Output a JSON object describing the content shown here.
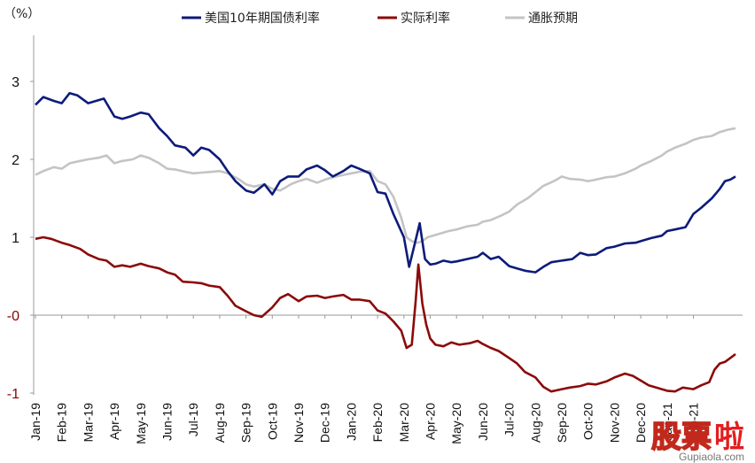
{
  "chart_data": {
    "type": "line",
    "unit_label": "（%）",
    "ylim": [
      -1,
      3.5
    ],
    "y_ticks": [
      {
        "value": 3,
        "label": "3"
      },
      {
        "value": 2,
        "label": "2"
      },
      {
        "value": 1,
        "label": "1"
      },
      {
        "value": 0,
        "label": "-0"
      },
      {
        "value": -1,
        "label": "-1"
      }
    ],
    "grid": false,
    "legend_position": "top",
    "categories": [
      "Jan-19",
      "Feb-19",
      "Mar-19",
      "Apr-19",
      "May-19",
      "Jun-19",
      "Jul-19",
      "Aug-19",
      "Sep-19",
      "Oct-19",
      "Nov-19",
      "Dec-19",
      "Jan-20",
      "Feb-20",
      "Mar-20",
      "Apr-20",
      "May-20",
      "Jun-20",
      "Jul-20",
      "Aug-20",
      "Sep-20",
      "Oct-20",
      "Nov-20",
      "Dec-20",
      "Jan-21",
      "Feb-21"
    ],
    "series": [
      {
        "name": "美国10年期国债利率",
        "color": "#0d1b7a",
        "points": [
          [
            0,
            2.7
          ],
          [
            0.3,
            2.8
          ],
          [
            0.7,
            2.75
          ],
          [
            1.0,
            2.72
          ],
          [
            1.3,
            2.85
          ],
          [
            1.6,
            2.82
          ],
          [
            2.0,
            2.72
          ],
          [
            2.3,
            2.75
          ],
          [
            2.6,
            2.78
          ],
          [
            3.0,
            2.55
          ],
          [
            3.3,
            2.52
          ],
          [
            3.6,
            2.55
          ],
          [
            4.0,
            2.6
          ],
          [
            4.3,
            2.58
          ],
          [
            4.7,
            2.4
          ],
          [
            5.0,
            2.3
          ],
          [
            5.3,
            2.18
          ],
          [
            5.7,
            2.15
          ],
          [
            6.0,
            2.05
          ],
          [
            6.3,
            2.15
          ],
          [
            6.6,
            2.12
          ],
          [
            7.0,
            2.0
          ],
          [
            7.3,
            1.85
          ],
          [
            7.6,
            1.72
          ],
          [
            8.0,
            1.6
          ],
          [
            8.3,
            1.57
          ],
          [
            8.7,
            1.68
          ],
          [
            9.0,
            1.55
          ],
          [
            9.3,
            1.72
          ],
          [
            9.6,
            1.78
          ],
          [
            10.0,
            1.78
          ],
          [
            10.3,
            1.87
          ],
          [
            10.7,
            1.92
          ],
          [
            11.0,
            1.86
          ],
          [
            11.3,
            1.78
          ],
          [
            11.7,
            1.85
          ],
          [
            12.0,
            1.92
          ],
          [
            12.3,
            1.88
          ],
          [
            12.7,
            1.82
          ],
          [
            13.0,
            1.58
          ],
          [
            13.3,
            1.56
          ],
          [
            13.6,
            1.3
          ],
          [
            14.0,
            1.0
          ],
          [
            14.2,
            0.62
          ],
          [
            14.4,
            0.9
          ],
          [
            14.6,
            1.18
          ],
          [
            14.8,
            0.72
          ],
          [
            15.0,
            0.65
          ],
          [
            15.2,
            0.66
          ],
          [
            15.5,
            0.7
          ],
          [
            15.8,
            0.68
          ],
          [
            16.0,
            0.69
          ],
          [
            16.4,
            0.72
          ],
          [
            16.8,
            0.75
          ],
          [
            17.0,
            0.8
          ],
          [
            17.3,
            0.72
          ],
          [
            17.6,
            0.75
          ],
          [
            18.0,
            0.63
          ],
          [
            18.3,
            0.6
          ],
          [
            18.6,
            0.57
          ],
          [
            19.0,
            0.55
          ],
          [
            19.3,
            0.62
          ],
          [
            19.6,
            0.68
          ],
          [
            20.0,
            0.7
          ],
          [
            20.4,
            0.72
          ],
          [
            20.7,
            0.8
          ],
          [
            21.0,
            0.77
          ],
          [
            21.3,
            0.78
          ],
          [
            21.7,
            0.86
          ],
          [
            22.0,
            0.88
          ],
          [
            22.4,
            0.92
          ],
          [
            22.8,
            0.93
          ],
          [
            23.0,
            0.95
          ],
          [
            23.4,
            0.99
          ],
          [
            23.8,
            1.02
          ],
          [
            24.0,
            1.08
          ],
          [
            24.3,
            1.1
          ],
          [
            24.7,
            1.13
          ],
          [
            25.0,
            1.3
          ],
          [
            25.3,
            1.38
          ],
          [
            25.7,
            1.5
          ],
          [
            26.0,
            1.62
          ],
          [
            26.2,
            1.72
          ],
          [
            26.4,
            1.74
          ],
          [
            26.6,
            1.78
          ]
        ]
      },
      {
        "name": "实际利率",
        "color": "#8b0a0a",
        "points": [
          [
            0,
            0.98
          ],
          [
            0.3,
            1.0
          ],
          [
            0.6,
            0.98
          ],
          [
            1.0,
            0.93
          ],
          [
            1.3,
            0.9
          ],
          [
            1.7,
            0.85
          ],
          [
            2.0,
            0.78
          ],
          [
            2.4,
            0.72
          ],
          [
            2.7,
            0.7
          ],
          [
            3.0,
            0.62
          ],
          [
            3.3,
            0.64
          ],
          [
            3.6,
            0.62
          ],
          [
            4.0,
            0.66
          ],
          [
            4.3,
            0.63
          ],
          [
            4.7,
            0.6
          ],
          [
            5.0,
            0.55
          ],
          [
            5.3,
            0.52
          ],
          [
            5.6,
            0.43
          ],
          [
            6.0,
            0.42
          ],
          [
            6.3,
            0.41
          ],
          [
            6.6,
            0.38
          ],
          [
            7.0,
            0.36
          ],
          [
            7.3,
            0.25
          ],
          [
            7.6,
            0.12
          ],
          [
            8.0,
            0.05
          ],
          [
            8.3,
            0.0
          ],
          [
            8.6,
            -0.02
          ],
          [
            9.0,
            0.1
          ],
          [
            9.3,
            0.22
          ],
          [
            9.6,
            0.27
          ],
          [
            10.0,
            0.18
          ],
          [
            10.3,
            0.24
          ],
          [
            10.7,
            0.25
          ],
          [
            11.0,
            0.22
          ],
          [
            11.3,
            0.24
          ],
          [
            11.7,
            0.26
          ],
          [
            12.0,
            0.2
          ],
          [
            12.3,
            0.2
          ],
          [
            12.7,
            0.18
          ],
          [
            13.0,
            0.06
          ],
          [
            13.3,
            0.02
          ],
          [
            13.6,
            -0.08
          ],
          [
            13.9,
            -0.2
          ],
          [
            14.1,
            -0.42
          ],
          [
            14.3,
            -0.38
          ],
          [
            14.45,
            0.2
          ],
          [
            14.55,
            0.65
          ],
          [
            14.7,
            0.15
          ],
          [
            14.85,
            -0.12
          ],
          [
            15.0,
            -0.3
          ],
          [
            15.2,
            -0.38
          ],
          [
            15.5,
            -0.4
          ],
          [
            15.8,
            -0.35
          ],
          [
            16.1,
            -0.38
          ],
          [
            16.5,
            -0.36
          ],
          [
            16.8,
            -0.33
          ],
          [
            17.0,
            -0.37
          ],
          [
            17.3,
            -0.42
          ],
          [
            17.6,
            -0.46
          ],
          [
            18.0,
            -0.55
          ],
          [
            18.3,
            -0.62
          ],
          [
            18.6,
            -0.73
          ],
          [
            19.0,
            -0.8
          ],
          [
            19.3,
            -0.92
          ],
          [
            19.6,
            -0.98
          ],
          [
            20.0,
            -0.95
          ],
          [
            20.3,
            -0.93
          ],
          [
            20.7,
            -0.91
          ],
          [
            21.0,
            -0.88
          ],
          [
            21.3,
            -0.89
          ],
          [
            21.7,
            -0.85
          ],
          [
            22.0,
            -0.8
          ],
          [
            22.4,
            -0.75
          ],
          [
            22.7,
            -0.78
          ],
          [
            23.0,
            -0.84
          ],
          [
            23.3,
            -0.9
          ],
          [
            23.7,
            -0.94
          ],
          [
            24.0,
            -0.97
          ],
          [
            24.3,
            -0.98
          ],
          [
            24.6,
            -0.93
          ],
          [
            25.0,
            -0.95
          ],
          [
            25.3,
            -0.9
          ],
          [
            25.6,
            -0.86
          ],
          [
            25.8,
            -0.7
          ],
          [
            26.0,
            -0.62
          ],
          [
            26.2,
            -0.6
          ],
          [
            26.4,
            -0.55
          ],
          [
            26.6,
            -0.5
          ]
        ]
      },
      {
        "name": "通胀预期",
        "color": "#c4c4c4",
        "points": [
          [
            0,
            1.8
          ],
          [
            0.3,
            1.85
          ],
          [
            0.7,
            1.9
          ],
          [
            1.0,
            1.88
          ],
          [
            1.3,
            1.95
          ],
          [
            1.7,
            1.98
          ],
          [
            2.0,
            2.0
          ],
          [
            2.4,
            2.02
          ],
          [
            2.7,
            2.05
          ],
          [
            3.0,
            1.95
          ],
          [
            3.3,
            1.98
          ],
          [
            3.7,
            2.0
          ],
          [
            4.0,
            2.05
          ],
          [
            4.3,
            2.02
          ],
          [
            4.7,
            1.95
          ],
          [
            5.0,
            1.88
          ],
          [
            5.3,
            1.87
          ],
          [
            5.7,
            1.84
          ],
          [
            6.0,
            1.82
          ],
          [
            6.3,
            1.83
          ],
          [
            6.7,
            1.84
          ],
          [
            7.0,
            1.85
          ],
          [
            7.3,
            1.82
          ],
          [
            7.7,
            1.75
          ],
          [
            8.0,
            1.68
          ],
          [
            8.3,
            1.65
          ],
          [
            8.7,
            1.68
          ],
          [
            9.0,
            1.62
          ],
          [
            9.3,
            1.6
          ],
          [
            9.7,
            1.68
          ],
          [
            10.0,
            1.72
          ],
          [
            10.3,
            1.75
          ],
          [
            10.7,
            1.7
          ],
          [
            11.0,
            1.74
          ],
          [
            11.3,
            1.77
          ],
          [
            11.7,
            1.8
          ],
          [
            12.0,
            1.82
          ],
          [
            12.3,
            1.84
          ],
          [
            12.7,
            1.85
          ],
          [
            13.0,
            1.72
          ],
          [
            13.3,
            1.68
          ],
          [
            13.6,
            1.52
          ],
          [
            13.9,
            1.25
          ],
          [
            14.1,
            1.0
          ],
          [
            14.3,
            0.95
          ],
          [
            14.5,
            0.93
          ],
          [
            14.7,
            0.95
          ],
          [
            14.9,
            1.0
          ],
          [
            15.1,
            1.02
          ],
          [
            15.4,
            1.05
          ],
          [
            15.7,
            1.08
          ],
          [
            16.0,
            1.1
          ],
          [
            16.4,
            1.14
          ],
          [
            16.8,
            1.16
          ],
          [
            17.0,
            1.2
          ],
          [
            17.3,
            1.22
          ],
          [
            17.7,
            1.28
          ],
          [
            18.0,
            1.33
          ],
          [
            18.3,
            1.42
          ],
          [
            18.7,
            1.5
          ],
          [
            19.0,
            1.58
          ],
          [
            19.3,
            1.66
          ],
          [
            19.7,
            1.72
          ],
          [
            20.0,
            1.78
          ],
          [
            20.3,
            1.75
          ],
          [
            20.7,
            1.74
          ],
          [
            21.0,
            1.72
          ],
          [
            21.3,
            1.74
          ],
          [
            21.7,
            1.77
          ],
          [
            22.0,
            1.78
          ],
          [
            22.4,
            1.82
          ],
          [
            22.8,
            1.88
          ],
          [
            23.0,
            1.92
          ],
          [
            23.4,
            1.98
          ],
          [
            23.8,
            2.05
          ],
          [
            24.0,
            2.1
          ],
          [
            24.3,
            2.15
          ],
          [
            24.7,
            2.2
          ],
          [
            25.0,
            2.25
          ],
          [
            25.3,
            2.28
          ],
          [
            25.7,
            2.3
          ],
          [
            26.0,
            2.35
          ],
          [
            26.3,
            2.38
          ],
          [
            26.6,
            2.4
          ]
        ]
      }
    ]
  },
  "watermark": {
    "main": "股票",
    "accent": "啦",
    "site": "Gupiaola.com"
  }
}
